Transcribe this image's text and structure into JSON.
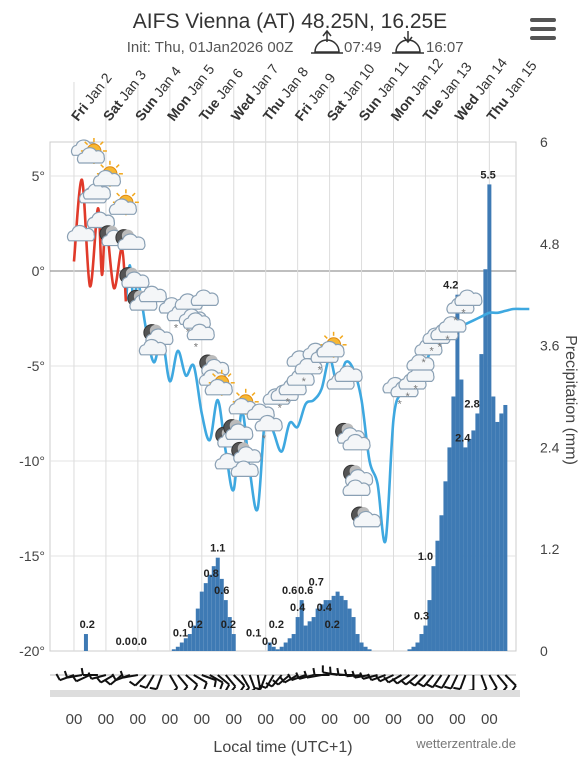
{
  "header": {
    "title": "AIFS Vienna (AT) 48.25N, 16.25E",
    "init": "Init: Thu, 01Jan2026 00Z",
    "sunrise": "07:49",
    "sunset": "16:07",
    "menu_icon": "hamburger-icon"
  },
  "footer": {
    "xlabel": "Local time (UTC+1)",
    "credit": "wetterzentrale.de"
  },
  "chart_data": {
    "type": "line+bar",
    "days": [
      {
        "wd": "Fri",
        "d": "Jan 2"
      },
      {
        "wd": "Sat",
        "d": "Jan 3"
      },
      {
        "wd": "Sun",
        "d": "Jan 4"
      },
      {
        "wd": "Mon",
        "d": "Jan 5"
      },
      {
        "wd": "Tue",
        "d": "Jan 6"
      },
      {
        "wd": "Wed",
        "d": "Jan 7"
      },
      {
        "wd": "Thu",
        "d": "Jan 8"
      },
      {
        "wd": "Fri",
        "d": "Jan 9"
      },
      {
        "wd": "Sat",
        "d": "Jan 10"
      },
      {
        "wd": "Sun",
        "d": "Jan 11"
      },
      {
        "wd": "Mon",
        "d": "Jan 12"
      },
      {
        "wd": "Tue",
        "d": "Jan 13"
      },
      {
        "wd": "Wed",
        "d": "Jan 14"
      },
      {
        "wd": "Thu",
        "d": "Jan 15"
      }
    ],
    "x_tick_labels": [
      "00",
      "00",
      "00",
      "00",
      "00",
      "00",
      "00",
      "00",
      "00",
      "00",
      "00",
      "00",
      "00",
      "00"
    ],
    "temp_axis": {
      "ticks": [
        "5°",
        "0°",
        "-5°",
        "-10°",
        "-15°",
        "-20°"
      ],
      "range": [
        -20,
        7
      ]
    },
    "precip_axis": {
      "label": "Precipitation (mm)",
      "ticks": [
        "6",
        "4.8",
        "3.6",
        "2.4",
        "1.2",
        "0"
      ],
      "range": [
        0,
        6
      ]
    },
    "temperature": {
      "hours": [
        0,
        6,
        12,
        18,
        21,
        24,
        30,
        36,
        39,
        42,
        45,
        48,
        54,
        60,
        66,
        72,
        78,
        84,
        90,
        96,
        102,
        108,
        114,
        120,
        126,
        132,
        138,
        144,
        150,
        156,
        162,
        168,
        174,
        180,
        186,
        192,
        198,
        204,
        210,
        216,
        222,
        228,
        234,
        240,
        246,
        252,
        258,
        264,
        270,
        276,
        282,
        288,
        294,
        300,
        306,
        312,
        318,
        324,
        330,
        336,
        342
      ],
      "values": [
        0.5,
        4.8,
        -0.8,
        3.3,
        -0.2,
        2.5,
        -0.9,
        1.2,
        -1.6,
        0.3,
        -1.8,
        -0.5,
        -3.0,
        -4.8,
        -3.5,
        -5.8,
        -4.2,
        -5.5,
        -5.0,
        -7.5,
        -8.9,
        -6.8,
        -9.5,
        -11.5,
        -7.4,
        -10.5,
        -12.5,
        -7.4,
        -8.5,
        -9.5,
        -8.0,
        -8.2,
        -7.0,
        -6.8,
        -6.2,
        -4.6,
        -6.0,
        -4.8,
        -5.2,
        -6.8,
        -10.0,
        -11.2,
        -14.2,
        -7.8,
        -6.4,
        -6.0,
        -5.8,
        -4.8,
        -4.0,
        -3.4,
        -3.2,
        -3.0,
        -2.8,
        -2.6,
        -2.4,
        -2.2,
        -2.2,
        -2.1,
        -2.0,
        -2.0,
        -2.0
      ],
      "warm_until_hour": 39
    },
    "precipitation": {
      "hours": [
        9,
        12,
        24,
        45,
        54,
        60,
        75,
        78,
        81,
        84,
        87,
        90,
        93,
        96,
        99,
        102,
        105,
        108,
        111,
        114,
        117,
        120,
        147,
        150,
        153,
        156,
        159,
        162,
        165,
        168,
        171,
        174,
        177,
        180,
        183,
        186,
        189,
        192,
        195,
        198,
        201,
        204,
        207,
        210,
        213,
        216,
        219,
        222,
        252,
        255,
        258,
        261,
        264,
        267,
        270,
        273,
        276,
        279,
        282,
        285,
        288,
        291,
        294,
        297,
        300,
        303,
        306,
        309,
        312,
        315,
        318,
        321,
        324
      ],
      "values": [
        0.2,
        0.0,
        0.0,
        0.0,
        0.0,
        0.0,
        0.02,
        0.05,
        0.1,
        0.15,
        0.2,
        0.3,
        0.5,
        0.7,
        0.8,
        0.9,
        1.0,
        1.1,
        0.85,
        0.6,
        0.4,
        0.2,
        0.1,
        0.05,
        0.02,
        0.05,
        0.1,
        0.15,
        0.2,
        0.4,
        0.6,
        0.3,
        0.35,
        0.4,
        0.5,
        0.55,
        0.6,
        0.6,
        0.65,
        0.7,
        0.65,
        0.6,
        0.5,
        0.4,
        0.2,
        0.1,
        0.05,
        0.02,
        0.02,
        0.05,
        0.1,
        0.2,
        0.3,
        0.6,
        1.0,
        1.3,
        1.6,
        2.0,
        2.4,
        3.0,
        4.2,
        3.2,
        2.4,
        2.5,
        2.6,
        2.8,
        3.5,
        4.5,
        5.5,
        3.0,
        2.7,
        2.8,
        2.9
      ],
      "labels": [
        {
          "h": 10,
          "text": "0.2"
        },
        {
          "h": 37,
          "text": "0.0"
        },
        {
          "h": 49,
          "text": "0.0"
        },
        {
          "h": 80,
          "text": "0.1"
        },
        {
          "h": 91,
          "text": "0.2"
        },
        {
          "h": 103,
          "text": "0.8"
        },
        {
          "h": 108,
          "text": "1.1"
        },
        {
          "h": 111,
          "text": "0.6"
        },
        {
          "h": 116,
          "text": "0.2"
        },
        {
          "h": 135,
          "text": "0.1"
        },
        {
          "h": 147,
          "text": "0.0"
        },
        {
          "h": 152,
          "text": "0.2"
        },
        {
          "h": 162,
          "text": "0.6"
        },
        {
          "h": 168,
          "text": "0.4"
        },
        {
          "h": 174,
          "text": "0.6"
        },
        {
          "h": 182,
          "text": "0.7"
        },
        {
          "h": 188,
          "text": "0.4"
        },
        {
          "h": 194,
          "text": "0.2"
        },
        {
          "h": 261,
          "text": "0.3"
        },
        {
          "h": 264,
          "text": "1.0"
        },
        {
          "h": 283,
          "text": "4.2"
        },
        {
          "h": 292,
          "text": "2.4"
        },
        {
          "h": 299,
          "text": "2.8"
        },
        {
          "h": 311,
          "text": "5.5"
        }
      ]
    },
    "weather_icons": [
      {
        "h": 3,
        "t": 1.8,
        "type": "cloud"
      },
      {
        "h": 6,
        "t": 6.3,
        "type": "cloud"
      },
      {
        "h": 12,
        "t": 6.0,
        "type": "partly-sunny"
      },
      {
        "h": 12,
        "t": 3.8,
        "type": "cloud"
      },
      {
        "h": 18,
        "t": 2.5,
        "type": "cloud"
      },
      {
        "h": 15,
        "t": 4.0,
        "type": "cloud"
      },
      {
        "h": 18,
        "t": 2.5,
        "type": "cloud"
      },
      {
        "h": 24,
        "t": 4.8,
        "type": "partly-sunny"
      },
      {
        "h": 27,
        "t": 1.8,
        "type": "moon-cloud"
      },
      {
        "h": 36,
        "t": 3.3,
        "type": "partly-sunny"
      },
      {
        "h": 39,
        "t": 1.6,
        "type": "moon-cloud"
      },
      {
        "h": 42,
        "t": -0.4,
        "type": "moon-cloud"
      },
      {
        "h": 48,
        "t": -1.6,
        "type": "moon-cloud"
      },
      {
        "h": 57,
        "t": -1.4,
        "type": "cloud"
      },
      {
        "h": 60,
        "t": -3.4,
        "type": "moon-cloud"
      },
      {
        "h": 57,
        "t": -4.2,
        "type": "cloud"
      },
      {
        "h": 72,
        "t": -2.0,
        "type": "cloud"
      },
      {
        "h": 78,
        "t": -2.4,
        "type": "snow-cloud"
      },
      {
        "h": 84,
        "t": -1.8,
        "type": "cloud"
      },
      {
        "h": 87,
        "t": -2.6,
        "type": "snow-cloud"
      },
      {
        "h": 90,
        "t": -2.8,
        "type": "snow-cloud"
      },
      {
        "h": 96,
        "t": -1.6,
        "type": "cloud"
      },
      {
        "h": 93,
        "t": -3.4,
        "type": "snow-cloud"
      },
      {
        "h": 102,
        "t": -5.0,
        "type": "moon-cloud"
      },
      {
        "h": 102,
        "t": -5.8,
        "type": "cloud"
      },
      {
        "h": 108,
        "t": -6.2,
        "type": "partly-sunny"
      },
      {
        "h": 114,
        "t": -8.8,
        "type": "moon-cloud"
      },
      {
        "h": 114,
        "t": -10.2,
        "type": "cloud"
      },
      {
        "h": 120,
        "t": -8.4,
        "type": "moon-cloud"
      },
      {
        "h": 126,
        "t": -7.2,
        "type": "partly-sunny"
      },
      {
        "h": 126,
        "t": -9.6,
        "type": "moon-cloud"
      },
      {
        "h": 126,
        "t": -10.6,
        "type": "cloud"
      },
      {
        "h": 138,
        "t": -7.6,
        "type": "cloud"
      },
      {
        "h": 144,
        "t": -8.2,
        "type": "snow-cloud"
      },
      {
        "h": 150,
        "t": -6.8,
        "type": "cloud"
      },
      {
        "h": 156,
        "t": -6.6,
        "type": "snow-cloud"
      },
      {
        "h": 162,
        "t": -6.3,
        "type": "snow-cloud"
      },
      {
        "h": 168,
        "t": -5.8,
        "type": "cloud"
      },
      {
        "h": 168,
        "t": -4.8,
        "type": "cloud"
      },
      {
        "h": 174,
        "t": -5.2,
        "type": "snow-cloud"
      },
      {
        "h": 180,
        "t": -4.4,
        "type": "cloud"
      },
      {
        "h": 186,
        "t": -4.6,
        "type": "snow-cloud"
      },
      {
        "h": 192,
        "t": -4.2,
        "type": "partly-sunny"
      },
      {
        "h": 198,
        "t": -6.0,
        "type": "cloud"
      },
      {
        "h": 204,
        "t": -5.6,
        "type": "cloud"
      },
      {
        "h": 204,
        "t": -8.6,
        "type": "moon-cloud"
      },
      {
        "h": 210,
        "t": -9.2,
        "type": "cloud"
      },
      {
        "h": 210,
        "t": -10.8,
        "type": "moon-cloud"
      },
      {
        "h": 210,
        "t": -11.6,
        "type": "cloud"
      },
      {
        "h": 216,
        "t": -13.0,
        "type": "moon-cloud"
      },
      {
        "h": 240,
        "t": -6.2,
        "type": "cloud"
      },
      {
        "h": 246,
        "t": -6.4,
        "type": "snow-cloud"
      },
      {
        "h": 252,
        "t": -6.0,
        "type": "snow-cloud"
      },
      {
        "h": 258,
        "t": -5.6,
        "type": "snow-cloud"
      },
      {
        "h": 258,
        "t": -5.0,
        "type": "cloud"
      },
      {
        "h": 264,
        "t": -4.2,
        "type": "snow-cloud"
      },
      {
        "h": 270,
        "t": -3.6,
        "type": "snow-cloud"
      },
      {
        "h": 276,
        "t": -3.4,
        "type": "snow-cloud"
      },
      {
        "h": 282,
        "t": -3.0,
        "type": "snow-cloud"
      },
      {
        "h": 288,
        "t": -2.0,
        "type": "snow-cloud"
      },
      {
        "h": 294,
        "t": -1.6,
        "type": "snow-cloud"
      }
    ],
    "wind": {
      "hours": [
        0,
        6,
        12,
        18,
        24,
        30,
        36,
        42,
        48,
        54,
        60,
        66,
        72,
        78,
        84,
        90,
        96,
        102,
        108,
        114,
        120,
        126,
        132,
        138,
        144,
        150,
        156,
        162,
        168,
        174,
        180,
        186,
        192,
        198,
        204,
        210,
        216,
        222,
        228,
        234,
        240,
        246,
        252,
        258,
        264,
        270,
        276,
        282,
        288,
        294,
        300,
        306,
        312,
        318,
        324
      ],
      "dir_deg": [
        250,
        260,
        245,
        270,
        255,
        240,
        230,
        250,
        260,
        225,
        210,
        200,
        150,
        140,
        130,
        120,
        110,
        120,
        130,
        140,
        135,
        150,
        160,
        170,
        200,
        210,
        220,
        230,
        240,
        250,
        255,
        260,
        270,
        280,
        275,
        270,
        265,
        260,
        255,
        250,
        245,
        240,
        235,
        230,
        225,
        220,
        215,
        210,
        205,
        200,
        180,
        160,
        150,
        140,
        135
      ]
    }
  }
}
